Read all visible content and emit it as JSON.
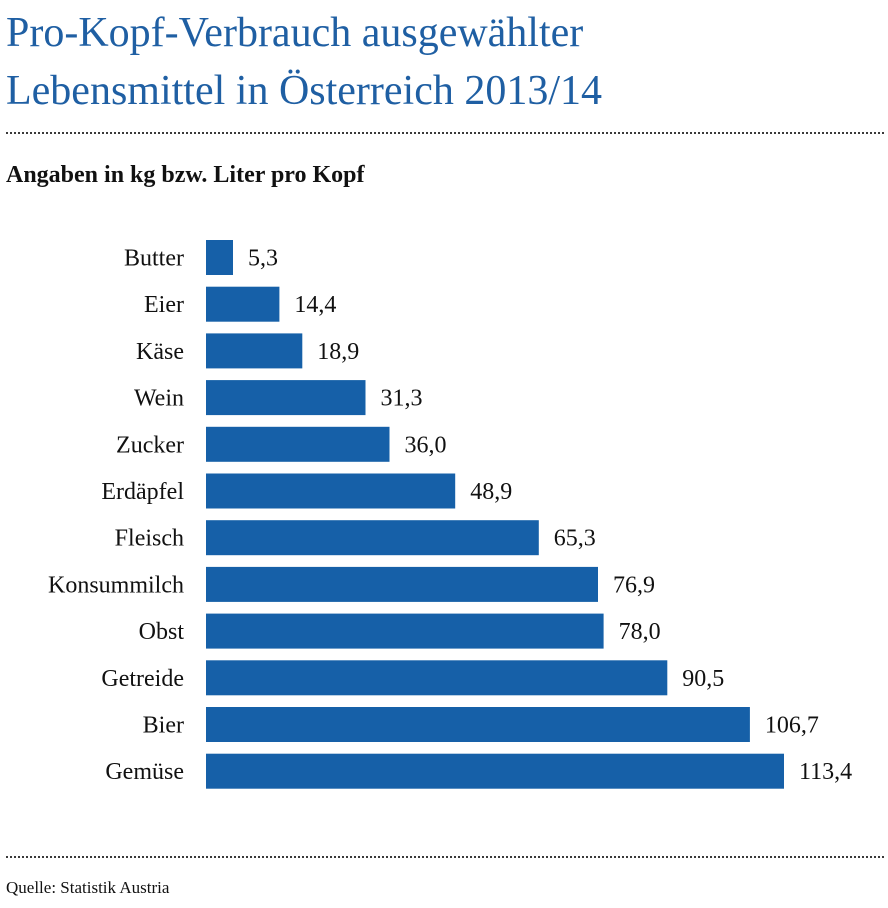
{
  "header": {
    "title_line1": "Pro-Kopf-Verbrauch ausgewählter",
    "title_line2": "Lebensmittel in Österreich 2013/14",
    "subtitle": "Angaben in kg bzw. Liter pro Kopf"
  },
  "footer": {
    "source": "Quelle: Statistik Austria"
  },
  "colors": {
    "title": "#1f5fa3",
    "bar": "#1660a8"
  },
  "chart_data": {
    "type": "bar",
    "orientation": "horizontal",
    "title": "Pro-Kopf-Verbrauch ausgewählter Lebensmittel in Österreich 2013/14",
    "subtitle": "Angaben in kg bzw. Liter pro Kopf",
    "categories": [
      "Butter",
      "Eier",
      "Käse",
      "Wein",
      "Zucker",
      "Erdäpfel",
      "Fleisch",
      "Konsummilch",
      "Obst",
      "Getreide",
      "Bier",
      "Gemüse"
    ],
    "values": [
      5.3,
      14.4,
      18.9,
      31.3,
      36.0,
      48.9,
      65.3,
      76.9,
      78.0,
      90.5,
      106.7,
      113.4
    ],
    "value_labels": [
      "5,3",
      "14,4",
      "18,9",
      "31,3",
      "36,0",
      "48,9",
      "65,3",
      "76,9",
      "78,0",
      "90,5",
      "106,7",
      "113,4"
    ],
    "xlim": [
      0,
      113.4
    ],
    "grid": false,
    "legend": "none"
  }
}
